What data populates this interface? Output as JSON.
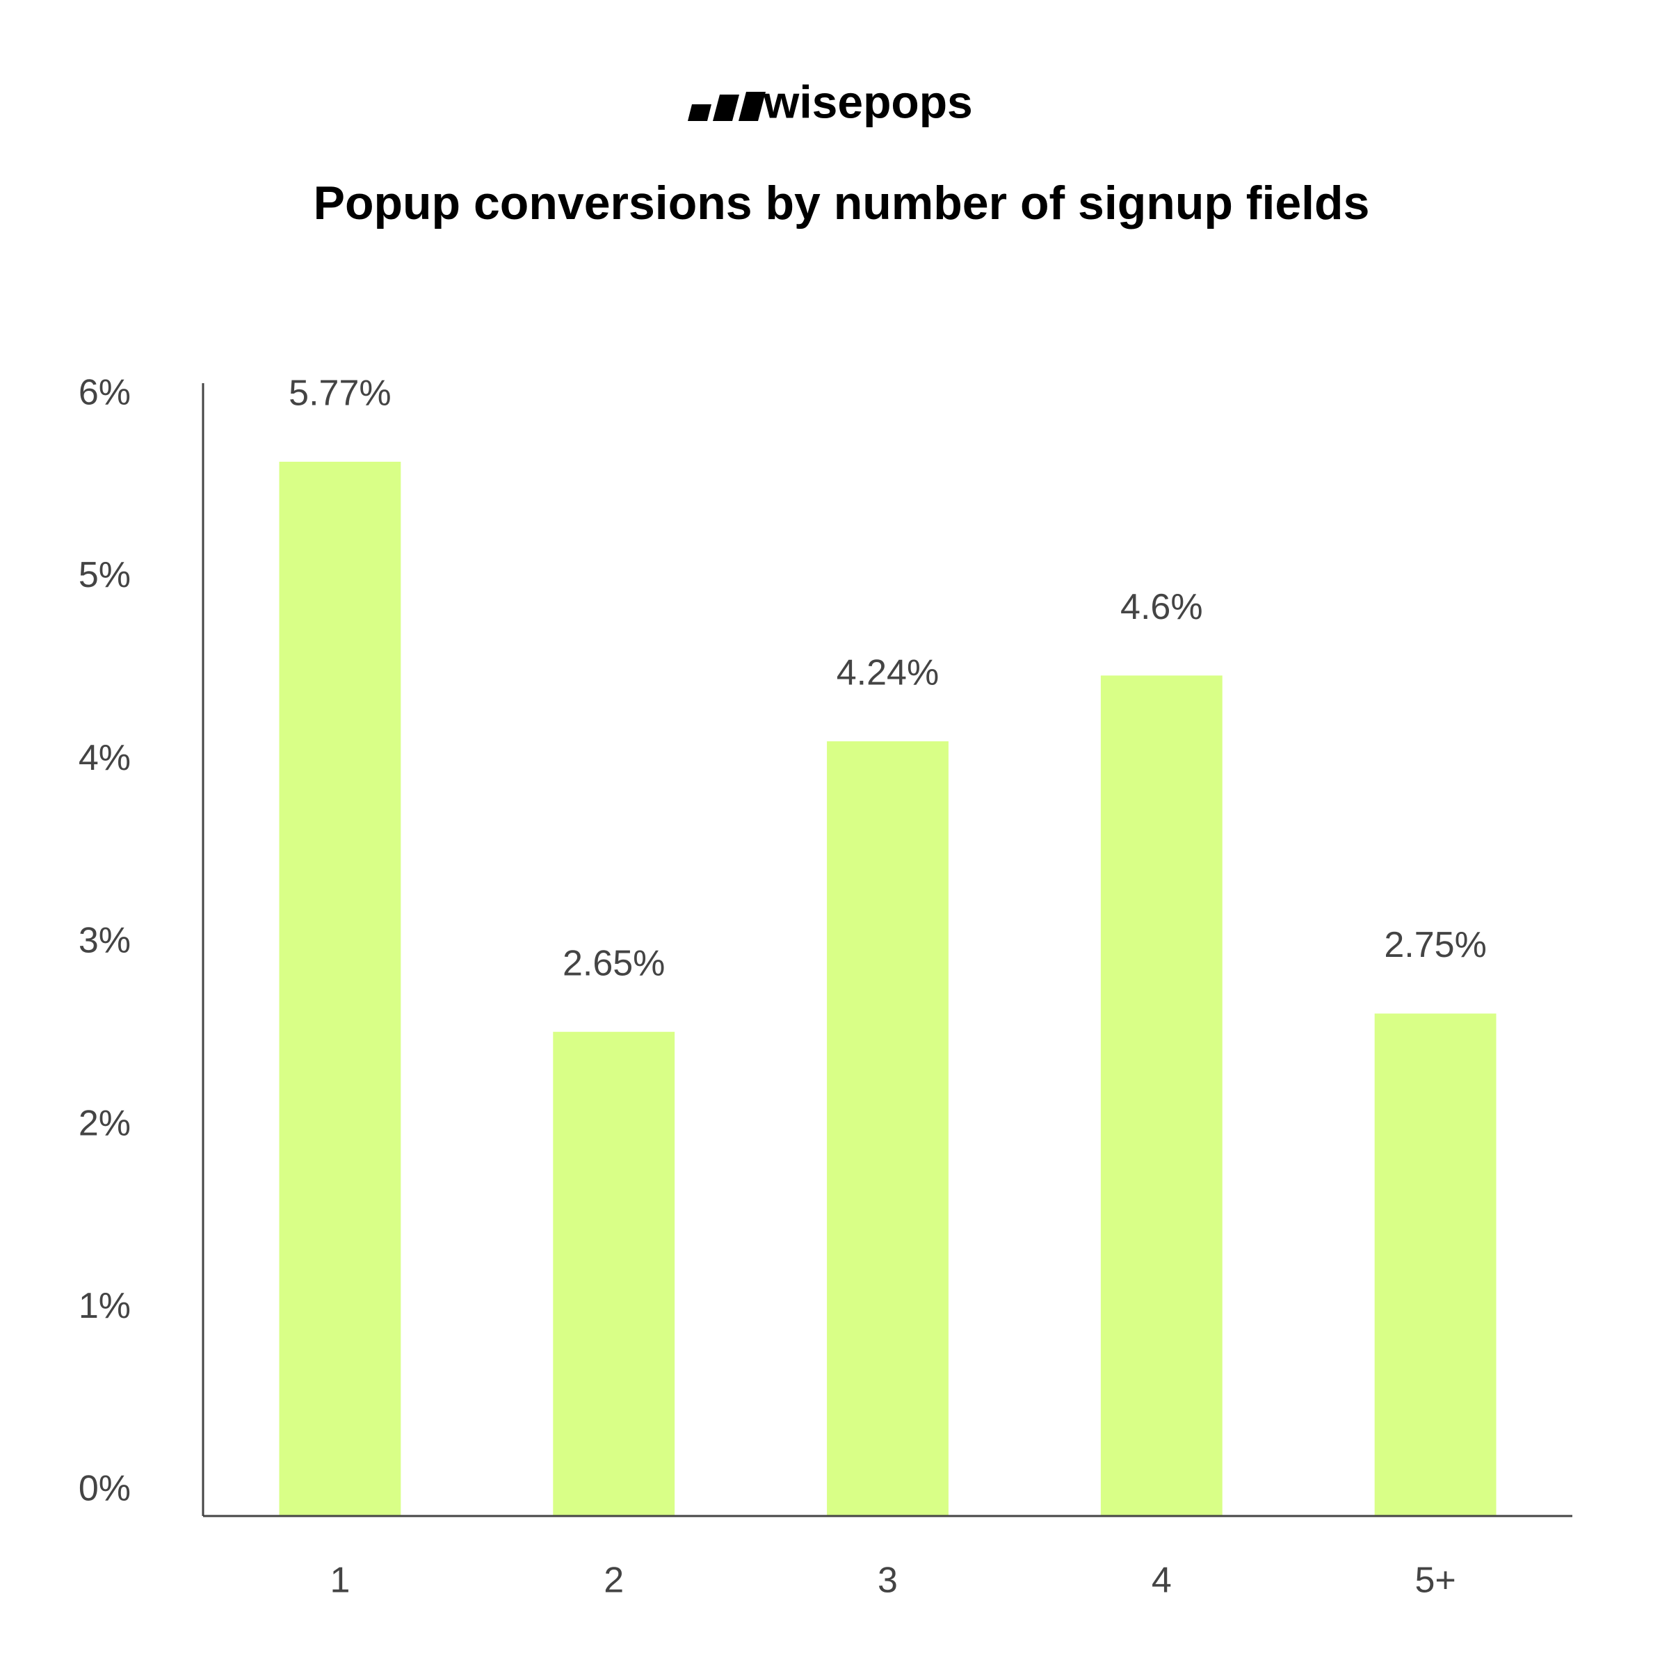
{
  "chart_data": {
    "type": "bar",
    "brand": "wisepops",
    "title": "Popup conversions by number of signup fields",
    "categories": [
      "1",
      "2",
      "3",
      "4",
      "5+"
    ],
    "values": [
      5.77,
      2.65,
      4.24,
      4.6,
      2.75
    ],
    "value_labels": [
      "5.77%",
      "2.65%",
      "4.24%",
      "4.6%",
      "2.75%"
    ],
    "color": "#d9ff87",
    "ylim": [
      0,
      6.2
    ],
    "yticks": [
      {
        "value": 0,
        "label": "0%"
      },
      {
        "value": 1,
        "label": "1%"
      },
      {
        "value": 2,
        "label": "2%"
      },
      {
        "value": 3,
        "label": "3%"
      },
      {
        "value": 4,
        "label": "4%"
      },
      {
        "value": 5,
        "label": "5%"
      },
      {
        "value": 6,
        "label": "6%"
      }
    ],
    "grid": false
  }
}
